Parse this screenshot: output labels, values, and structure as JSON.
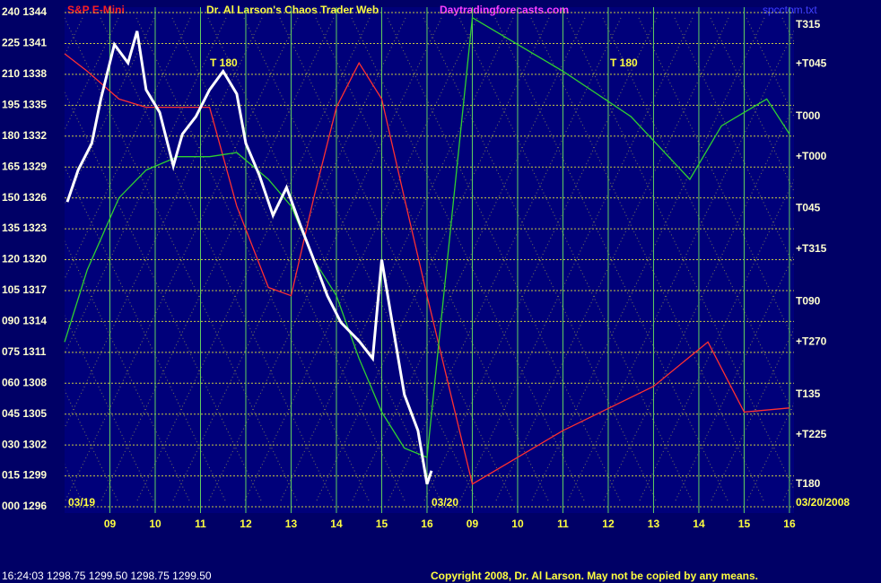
{
  "chart_data": {
    "type": "line",
    "title": "Dr. Al Larson's Chaos Trader Web",
    "subtitle": "S&P E-Mini",
    "site": "Daytradingforecasts.com",
    "file": "spcctom.txt",
    "footer_quote": "16:24:03  1298.75 1299.50 1298.75 1299.50",
    "copyright": "Copyright 2008, Dr. Al Larson. May not be copied by any means.",
    "date_labels": [
      "03/19",
      "03/20",
      "03/20/2008"
    ],
    "annotations": [
      "T 180",
      "T 180"
    ],
    "right_labels": [
      {
        "text": "T315",
        "value": 1342.8
      },
      {
        "text": "+T045",
        "value": 1339
      },
      {
        "text": "T000",
        "value": 1333.9
      },
      {
        "text": "+T000",
        "value": 1330
      },
      {
        "text": "T045",
        "value": 1325
      },
      {
        "text": "+T315",
        "value": 1321
      },
      {
        "text": "T090",
        "value": 1315.9
      },
      {
        "text": "+T270",
        "value": 1312
      },
      {
        "text": "T135",
        "value": 1306.9
      },
      {
        "text": "+T225",
        "value": 1303
      },
      {
        "text": "T180",
        "value": 1298.2
      }
    ],
    "xlim": [
      8,
      24.1
    ],
    "xticks": [
      {
        "value": 9,
        "label": "09"
      },
      10,
      11,
      12,
      13,
      14,
      15,
      16,
      {
        "value": 17,
        "label": "09"
      },
      {
        "value": 18,
        "label": "10"
      },
      {
        "value": 19,
        "label": "11"
      },
      {
        "value": 20,
        "label": "12"
      },
      {
        "value": 21,
        "label": "13"
      },
      {
        "value": 22,
        "label": "14"
      },
      {
        "value": 23,
        "label": "15"
      },
      {
        "value": 24,
        "label": "16"
      }
    ],
    "ylim": [
      1296,
      1344
    ],
    "yticks": [
      {
        "value": 1296,
        "label": "000 1296"
      },
      {
        "value": 1299,
        "label": "015 1299"
      },
      {
        "value": 1302,
        "label": "030 1302"
      },
      {
        "value": 1305,
        "label": "045 1305"
      },
      {
        "value": 1308,
        "label": "060 1308"
      },
      {
        "value": 1311,
        "label": "075 1311"
      },
      {
        "value": 1314,
        "label": "090 1314"
      },
      {
        "value": 1317,
        "label": "105 1317"
      },
      {
        "value": 1320,
        "label": "120 1320"
      },
      {
        "value": 1323,
        "label": "135 1323"
      },
      {
        "value": 1326,
        "label": "150 1326"
      },
      {
        "value": 1329,
        "label": "165 1329"
      },
      {
        "value": 1332,
        "label": "180 1332"
      },
      {
        "value": 1335,
        "label": "195 1335"
      },
      {
        "value": 1338,
        "label": "210 1338"
      },
      {
        "value": 1341,
        "label": "225 1341"
      },
      {
        "value": 1344,
        "label": "240 1344"
      }
    ],
    "grid": true,
    "series": [
      {
        "color": "#ff3030",
        "x": [
          8.0,
          8.5,
          9.2,
          9.8,
          10.5,
          11.2,
          11.8,
          12.5,
          13,
          13.5,
          14,
          14.5,
          15,
          15.5,
          16,
          17,
          19,
          21,
          22.2,
          23,
          24
        ],
        "values": [
          1340,
          1338.3,
          1335.6,
          1334.8,
          1334.8,
          1334.8,
          1325.2,
          1317.3,
          1316.5,
          1326,
          1334.8,
          1339.1,
          1335.6,
          1326,
          1316.5,
          1298.2,
          1303.4,
          1307.7,
          1312,
          1305.2,
          1305.6
        ]
      },
      {
        "color": "#30d030",
        "x": [
          8.0,
          8.5,
          9.2,
          9.8,
          10.5,
          11.2,
          11.8,
          12.5,
          13,
          13.5,
          14,
          14.5,
          15,
          15.5,
          16,
          17,
          19,
          20.5,
          21.8,
          22.5,
          23.5,
          24
        ],
        "values": [
          1312,
          1319,
          1326,
          1328.7,
          1330,
          1330,
          1330.4,
          1327.8,
          1325.2,
          1320,
          1316.5,
          1310.4,
          1305.2,
          1301.7,
          1300.8,
          1343.5,
          1338.3,
          1333.9,
          1327.8,
          1333,
          1335.6,
          1332.2
        ]
      },
      {
        "color": "#ffffff",
        "x": [
          8.06,
          8.3,
          8.6,
          8.8,
          9.1,
          9.4,
          9.6,
          9.8,
          10.1,
          10.4,
          10.6,
          10.9,
          11.2,
          11.5,
          11.8,
          12.0,
          12.3,
          12.6,
          12.9,
          13.2,
          13.5,
          13.8,
          14.1,
          14.5,
          14.8,
          15.0,
          15.2,
          15.5,
          15.8,
          16.0,
          16.1
        ],
        "values": [
          1325.6,
          1328.7,
          1331.3,
          1335.6,
          1340.9,
          1339.1,
          1342.2,
          1336.5,
          1334.3,
          1329.1,
          1332.2,
          1333.9,
          1336.5,
          1338.3,
          1336.1,
          1331.3,
          1328.2,
          1324.3,
          1327,
          1323.4,
          1320,
          1316.5,
          1313.9,
          1312.1,
          1310.4,
          1320,
          1314.7,
          1306.9,
          1303.4,
          1298.2,
          1299.5
        ]
      }
    ]
  }
}
